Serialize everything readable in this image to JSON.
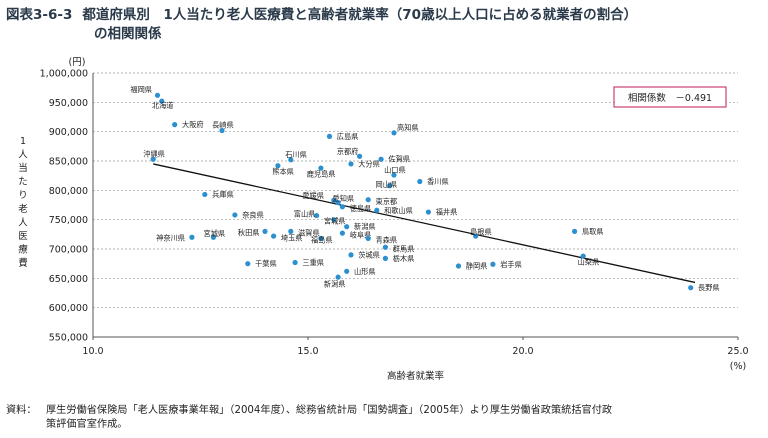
{
  "figure": {
    "number": "図表3-6-3",
    "title_line1": "都道府県別　1人当たり老人医療費と高齢者就業率（70歳以上人口に占める就業者の割合）",
    "title_line2": "の相関関係"
  },
  "source": {
    "label": "資料：",
    "line1": "厚生労働省保険局「老人医療事業年報」（2004年度）、総務省統計局「国勢調査」（2005年）より厚生労働省政策統括官付政",
    "line2": "策評価官室作成。"
  },
  "chart_data": {
    "type": "scatter",
    "xlabel": "高齢者就業率",
    "ylabel": "1人当たり老人医療費",
    "x_unit": "(%)",
    "y_unit": "(円)",
    "xlim": [
      10.0,
      25.0
    ],
    "ylim": [
      550000,
      1000000
    ],
    "x_ticks": [
      10.0,
      15.0,
      20.0,
      25.0
    ],
    "x_tick_labels": [
      "10.0",
      "15.0",
      "20.0",
      "25.0"
    ],
    "y_ticks": [
      550000,
      600000,
      650000,
      700000,
      750000,
      800000,
      850000,
      900000,
      950000,
      1000000
    ],
    "y_tick_labels": [
      "550,000",
      "600,000",
      "650,000",
      "700,000",
      "750,000",
      "800,000",
      "850,000",
      "900,000",
      "950,000",
      "1,000,000"
    ],
    "grid": "horizontal dashed",
    "annotation": "相関係数　－0.491",
    "point_color": "#2b8fd0",
    "trend_line": {
      "x": [
        11.4,
        24.0
      ],
      "y": [
        845000,
        643000
      ]
    },
    "points": [
      {
        "name": "福岡県",
        "x": 11.5,
        "y": 962000,
        "lx": -0.7,
        "ly": 10000
      },
      {
        "name": "北海道",
        "x": 11.6,
        "y": 952000,
        "lx": -0.3,
        "ly": -7000
      },
      {
        "name": "大阪府",
        "x": 11.9,
        "y": 912000,
        "lx": 0.1,
        "ly": 0
      },
      {
        "name": "長崎県",
        "x": 13.0,
        "y": 902000,
        "lx": -0.3,
        "ly": 9000
      },
      {
        "name": "高知県",
        "x": 17.0,
        "y": 898000,
        "lx": 0.0,
        "ly": 9000
      },
      {
        "name": "広島県",
        "x": 15.5,
        "y": 892000,
        "lx": 0.1,
        "ly": 0
      },
      {
        "name": "沖縄県",
        "x": 11.4,
        "y": 853000,
        "lx": -0.3,
        "ly": 9000
      },
      {
        "name": "石川県",
        "x": 14.6,
        "y": 852000,
        "lx": -0.2,
        "ly": 9000
      },
      {
        "name": "京都府",
        "x": 16.2,
        "y": 858000,
        "lx": -0.6,
        "ly": 8000
      },
      {
        "name": "佐賀県",
        "x": 16.7,
        "y": 853000,
        "lx": 0.1,
        "ly": 0
      },
      {
        "name": "熊本県",
        "x": 14.3,
        "y": 842000,
        "lx": -0.2,
        "ly": -10000
      },
      {
        "name": "大分県",
        "x": 16.0,
        "y": 845000,
        "lx": 0.1,
        "ly": 0
      },
      {
        "name": "鹿児島県",
        "x": 15.3,
        "y": 838000,
        "lx": -0.4,
        "ly": -10000
      },
      {
        "name": "山口県",
        "x": 17.0,
        "y": 826000,
        "lx": -0.3,
        "ly": 9000
      },
      {
        "name": "香川県",
        "x": 17.6,
        "y": 815000,
        "lx": 0.1,
        "ly": 0
      },
      {
        "name": "岡山県",
        "x": 16.9,
        "y": 808000,
        "lx": -0.4,
        "ly": 2000
      },
      {
        "name": "兵庫県",
        "x": 12.6,
        "y": 793000,
        "lx": 0.1,
        "ly": 0
      },
      {
        "name": "愛媛県",
        "x": 15.6,
        "y": 783000,
        "lx": -0.8,
        "ly": 8000
      },
      {
        "name": "東京都",
        "x": 16.4,
        "y": 784000,
        "lx": 0.1,
        "ly": -3000
      },
      {
        "name": "愛知県",
        "x": 15.7,
        "y": 779000,
        "lx": -0.2,
        "ly": 7000
      },
      {
        "name": "徳島県",
        "x": 15.8,
        "y": 772000,
        "lx": 0.1,
        "ly": -3000
      },
      {
        "name": "和歌山県",
        "x": 16.6,
        "y": 766000,
        "lx": 0.1,
        "ly": 0
      },
      {
        "name": "福井県",
        "x": 17.8,
        "y": 763000,
        "lx": 0.1,
        "ly": 0
      },
      {
        "name": "奈良県",
        "x": 13.3,
        "y": 758000,
        "lx": 0.1,
        "ly": 0
      },
      {
        "name": "富山県",
        "x": 15.2,
        "y": 757000,
        "lx": -0.6,
        "ly": 3000
      },
      {
        "name": "宮城県",
        "x": 15.6,
        "y": 750000,
        "lx": -0.3,
        "ly": -2000
      },
      {
        "name": "秋田県",
        "x": 14.0,
        "y": 730000,
        "lx": -0.7,
        "ly": -2000
      },
      {
        "name": "滋賀県",
        "x": 14.6,
        "y": 730000,
        "lx": 0.1,
        "ly": -3000
      },
      {
        "name": "埼玉県",
        "x": 14.2,
        "y": 722000,
        "lx": 0.1,
        "ly": -3000
      },
      {
        "name": "神奈川県",
        "x": 12.3,
        "y": 720000,
        "lx": -0.9,
        "ly": -1000
      },
      {
        "name": "宮城県",
        "x": 12.8,
        "y": 720000,
        "lx": -0.3,
        "ly": 6000
      },
      {
        "name": "岐阜県",
        "x": 15.8,
        "y": 727000,
        "lx": 0.1,
        "ly": -3000
      },
      {
        "name": "新潟県",
        "x": 15.9,
        "y": 738000,
        "lx": 0.1,
        "ly": 0
      },
      {
        "name": "福島県",
        "x": 15.3,
        "y": 718000,
        "lx": -0.3,
        "ly": -3000
      },
      {
        "name": "青森県",
        "x": 16.4,
        "y": 718000,
        "lx": 0.1,
        "ly": -3000
      },
      {
        "name": "島根県",
        "x": 18.9,
        "y": 722000,
        "lx": -0.2,
        "ly": 7000
      },
      {
        "name": "鳥取県",
        "x": 21.2,
        "y": 730000,
        "lx": 0.1,
        "ly": 0
      },
      {
        "name": "群馬県",
        "x": 16.8,
        "y": 703000,
        "lx": 0.1,
        "ly": -3000
      },
      {
        "name": "茨城県",
        "x": 16.0,
        "y": 690000,
        "lx": 0.1,
        "ly": 0
      },
      {
        "name": "栃木県",
        "x": 16.8,
        "y": 684000,
        "lx": 0.1,
        "ly": 0
      },
      {
        "name": "千葉県",
        "x": 13.6,
        "y": 675000,
        "lx": 0.1,
        "ly": 0
      },
      {
        "name": "三重県",
        "x": 14.7,
        "y": 677000,
        "lx": 0.1,
        "ly": 0
      },
      {
        "name": "山形県",
        "x": 15.9,
        "y": 662000,
        "lx": 0.1,
        "ly": 0
      },
      {
        "name": "静岡県",
        "x": 18.5,
        "y": 671000,
        "lx": 0.1,
        "ly": 0
      },
      {
        "name": "岩手県",
        "x": 19.3,
        "y": 674000,
        "lx": 0.1,
        "ly": 0
      },
      {
        "name": "山梨県",
        "x": 21.4,
        "y": 688000,
        "lx": -0.2,
        "ly": -10000
      },
      {
        "name": "新潟県",
        "x": 15.7,
        "y": 652000,
        "lx": -0.4,
        "ly": -12000
      },
      {
        "name": "長野県",
        "x": 23.9,
        "y": 634000,
        "lx": 0.1,
        "ly": 0
      }
    ]
  }
}
